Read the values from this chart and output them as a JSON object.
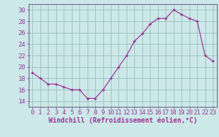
{
  "x": [
    0,
    1,
    2,
    3,
    4,
    5,
    6,
    7,
    8,
    9,
    10,
    11,
    12,
    13,
    14,
    15,
    16,
    17,
    18,
    19,
    20,
    21,
    22,
    23
  ],
  "y": [
    19,
    18,
    17,
    17,
    16.5,
    16,
    16,
    14.5,
    14.5,
    16,
    18,
    20,
    22,
    24.5,
    25.8,
    27.5,
    28.5,
    28.5,
    30,
    29.2,
    28.5,
    28,
    22,
    21
  ],
  "line_color": "#993399",
  "marker": "+",
  "marker_color": "#993399",
  "bg_color": "#cce8e8",
  "grid_color": "#99bbbb",
  "xlabel": "Windchill (Refroidissement éolien,°C)",
  "ylabel": "",
  "xlim": [
    -0.5,
    23.5
  ],
  "ylim": [
    13,
    31
  ],
  "yticks": [
    14,
    16,
    18,
    20,
    22,
    24,
    26,
    28,
    30
  ],
  "xticks": [
    0,
    1,
    2,
    3,
    4,
    5,
    6,
    7,
    8,
    9,
    10,
    11,
    12,
    13,
    14,
    15,
    16,
    17,
    18,
    19,
    20,
    21,
    22,
    23
  ],
  "tick_color": "#993399",
  "label_color": "#993399",
  "spine_color": "#666688",
  "font_size": 6.5
}
